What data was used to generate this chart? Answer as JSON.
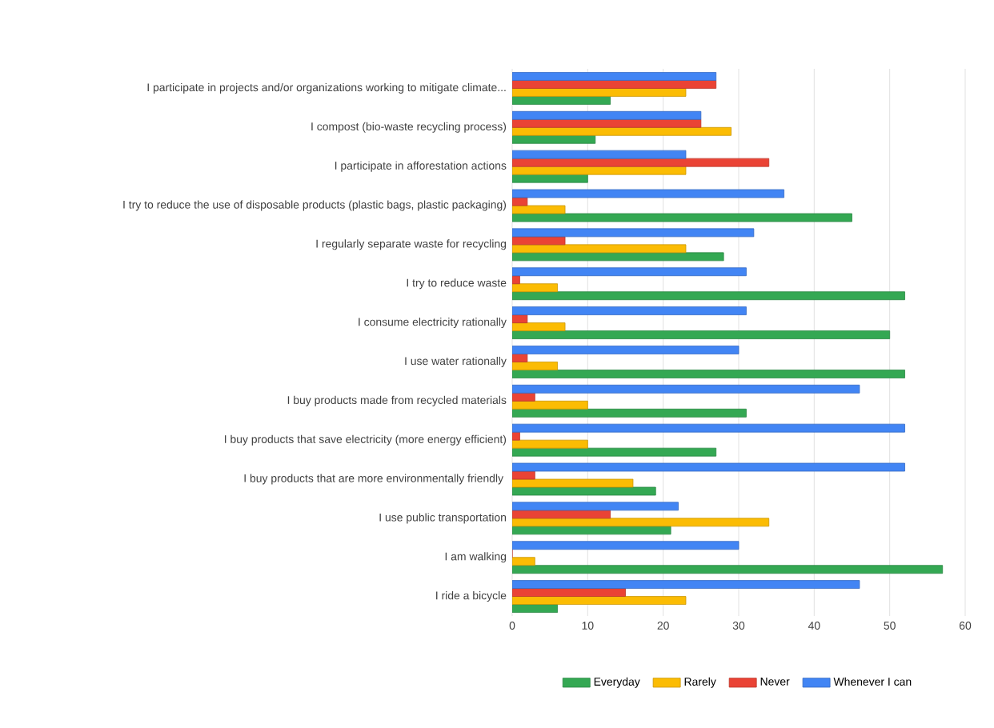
{
  "chart_data": {
    "type": "bar",
    "orientation": "horizontal",
    "categories": [
      "I participate in projects and/or organizations working to mitigate climate...",
      "I compost (bio-waste recycling process)",
      "I participate in afforestation actions",
      "I try to reduce the use of disposable products (plastic bags, plastic packaging)",
      "I regularly separate waste for recycling",
      "I try to reduce waste",
      "I consume electricity rationally",
      "I use water rationally",
      "I buy products made from recycled materials",
      "I buy products that save electricity (more energy efficient)",
      "I buy products that are more environmentally friendly ",
      "I use public transportation",
      "I am walking",
      "I ride a bicycle"
    ],
    "series": [
      {
        "name": "Everyday",
        "color": "#34a853",
        "values": [
          13,
          11,
          10,
          45,
          28,
          52,
          50,
          52,
          31,
          27,
          19,
          21,
          57,
          6
        ]
      },
      {
        "name": "Rarely",
        "color": "#fbbc04",
        "values": [
          23,
          29,
          23,
          7,
          23,
          6,
          7,
          6,
          10,
          10,
          16,
          34,
          3,
          23
        ]
      },
      {
        "name": "Never",
        "color": "#ea4335",
        "values": [
          27,
          25,
          34,
          2,
          7,
          1,
          2,
          2,
          3,
          1,
          3,
          13,
          0,
          15
        ]
      },
      {
        "name": "Whenever I can",
        "color": "#4285f4",
        "values": [
          27,
          25,
          23,
          36,
          32,
          31,
          31,
          30,
          46,
          52,
          52,
          22,
          30,
          46
        ]
      }
    ],
    "xlim": [
      0,
      60
    ],
    "xticks": [
      0,
      10,
      20,
      30,
      40,
      50,
      60
    ],
    "grid": "x",
    "legend": "bottom"
  }
}
